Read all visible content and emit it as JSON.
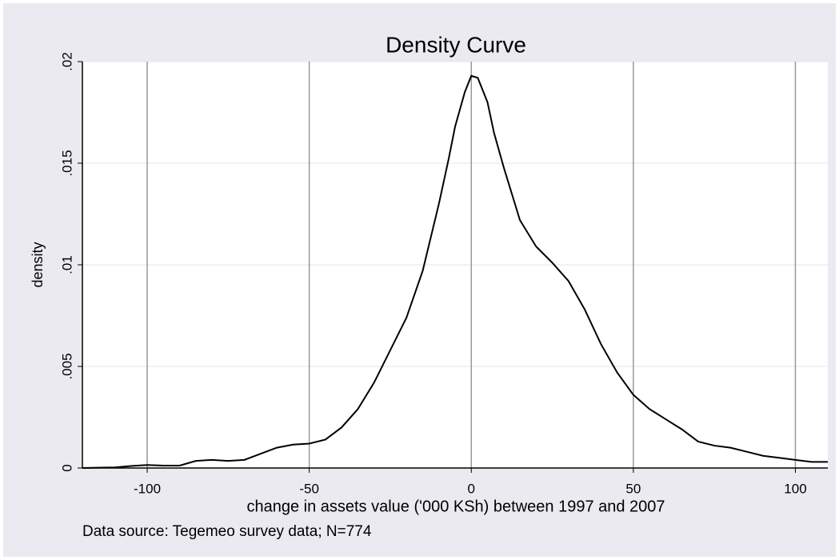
{
  "chart_data": {
    "type": "line",
    "title": "Density Curve",
    "xlabel": "change in assets value ('000 KSh) between 1997 and 2007",
    "ylabel": "density",
    "note": "Data source: Tegemeo survey data; N=774",
    "x": [
      -120,
      -110,
      -105,
      -100,
      -95,
      -90,
      -85,
      -80,
      -75,
      -70,
      -65,
      -60,
      -55,
      -50,
      -45,
      -40,
      -35,
      -30,
      -25,
      -20,
      -15,
      -10,
      -7,
      -5,
      -2,
      0,
      2,
      5,
      7,
      10,
      15,
      20,
      25,
      30,
      35,
      40,
      45,
      50,
      55,
      60,
      65,
      70,
      75,
      80,
      85,
      90,
      95,
      100,
      105,
      110
    ],
    "series": [
      {
        "name": "density",
        "color": "#000000",
        "values": [
          0,
          3e-05,
          0.0001,
          0.00015,
          0.00012,
          0.00012,
          0.00035,
          0.0004,
          0.00035,
          0.0004,
          0.0007,
          0.001,
          0.00115,
          0.0012,
          0.0014,
          0.002,
          0.0029,
          0.0042,
          0.0058,
          0.0074,
          0.0097,
          0.013,
          0.0152,
          0.0168,
          0.0185,
          0.0193,
          0.0192,
          0.018,
          0.0165,
          0.0148,
          0.0122,
          0.0109,
          0.0101,
          0.0092,
          0.0078,
          0.0061,
          0.0047,
          0.0036,
          0.0029,
          0.0024,
          0.0019,
          0.0013,
          0.0011,
          0.001,
          0.0008,
          0.0006,
          0.0005,
          0.0004,
          0.0003,
          0.0003
        ]
      }
    ],
    "xlim": [
      -120,
      110
    ],
    "ylim": [
      0,
      0.02
    ],
    "xticks": [
      -100,
      -50,
      0,
      50,
      100
    ],
    "yticks": [
      0,
      {
        "value": 0.005,
        "label": ".005"
      },
      {
        "value": 0.01,
        "label": ".01"
      },
      {
        "value": 0.015,
        "label": ".015"
      },
      {
        "value": 0.02,
        "label": ".02"
      }
    ],
    "xgrid": true,
    "ygrid": true
  }
}
